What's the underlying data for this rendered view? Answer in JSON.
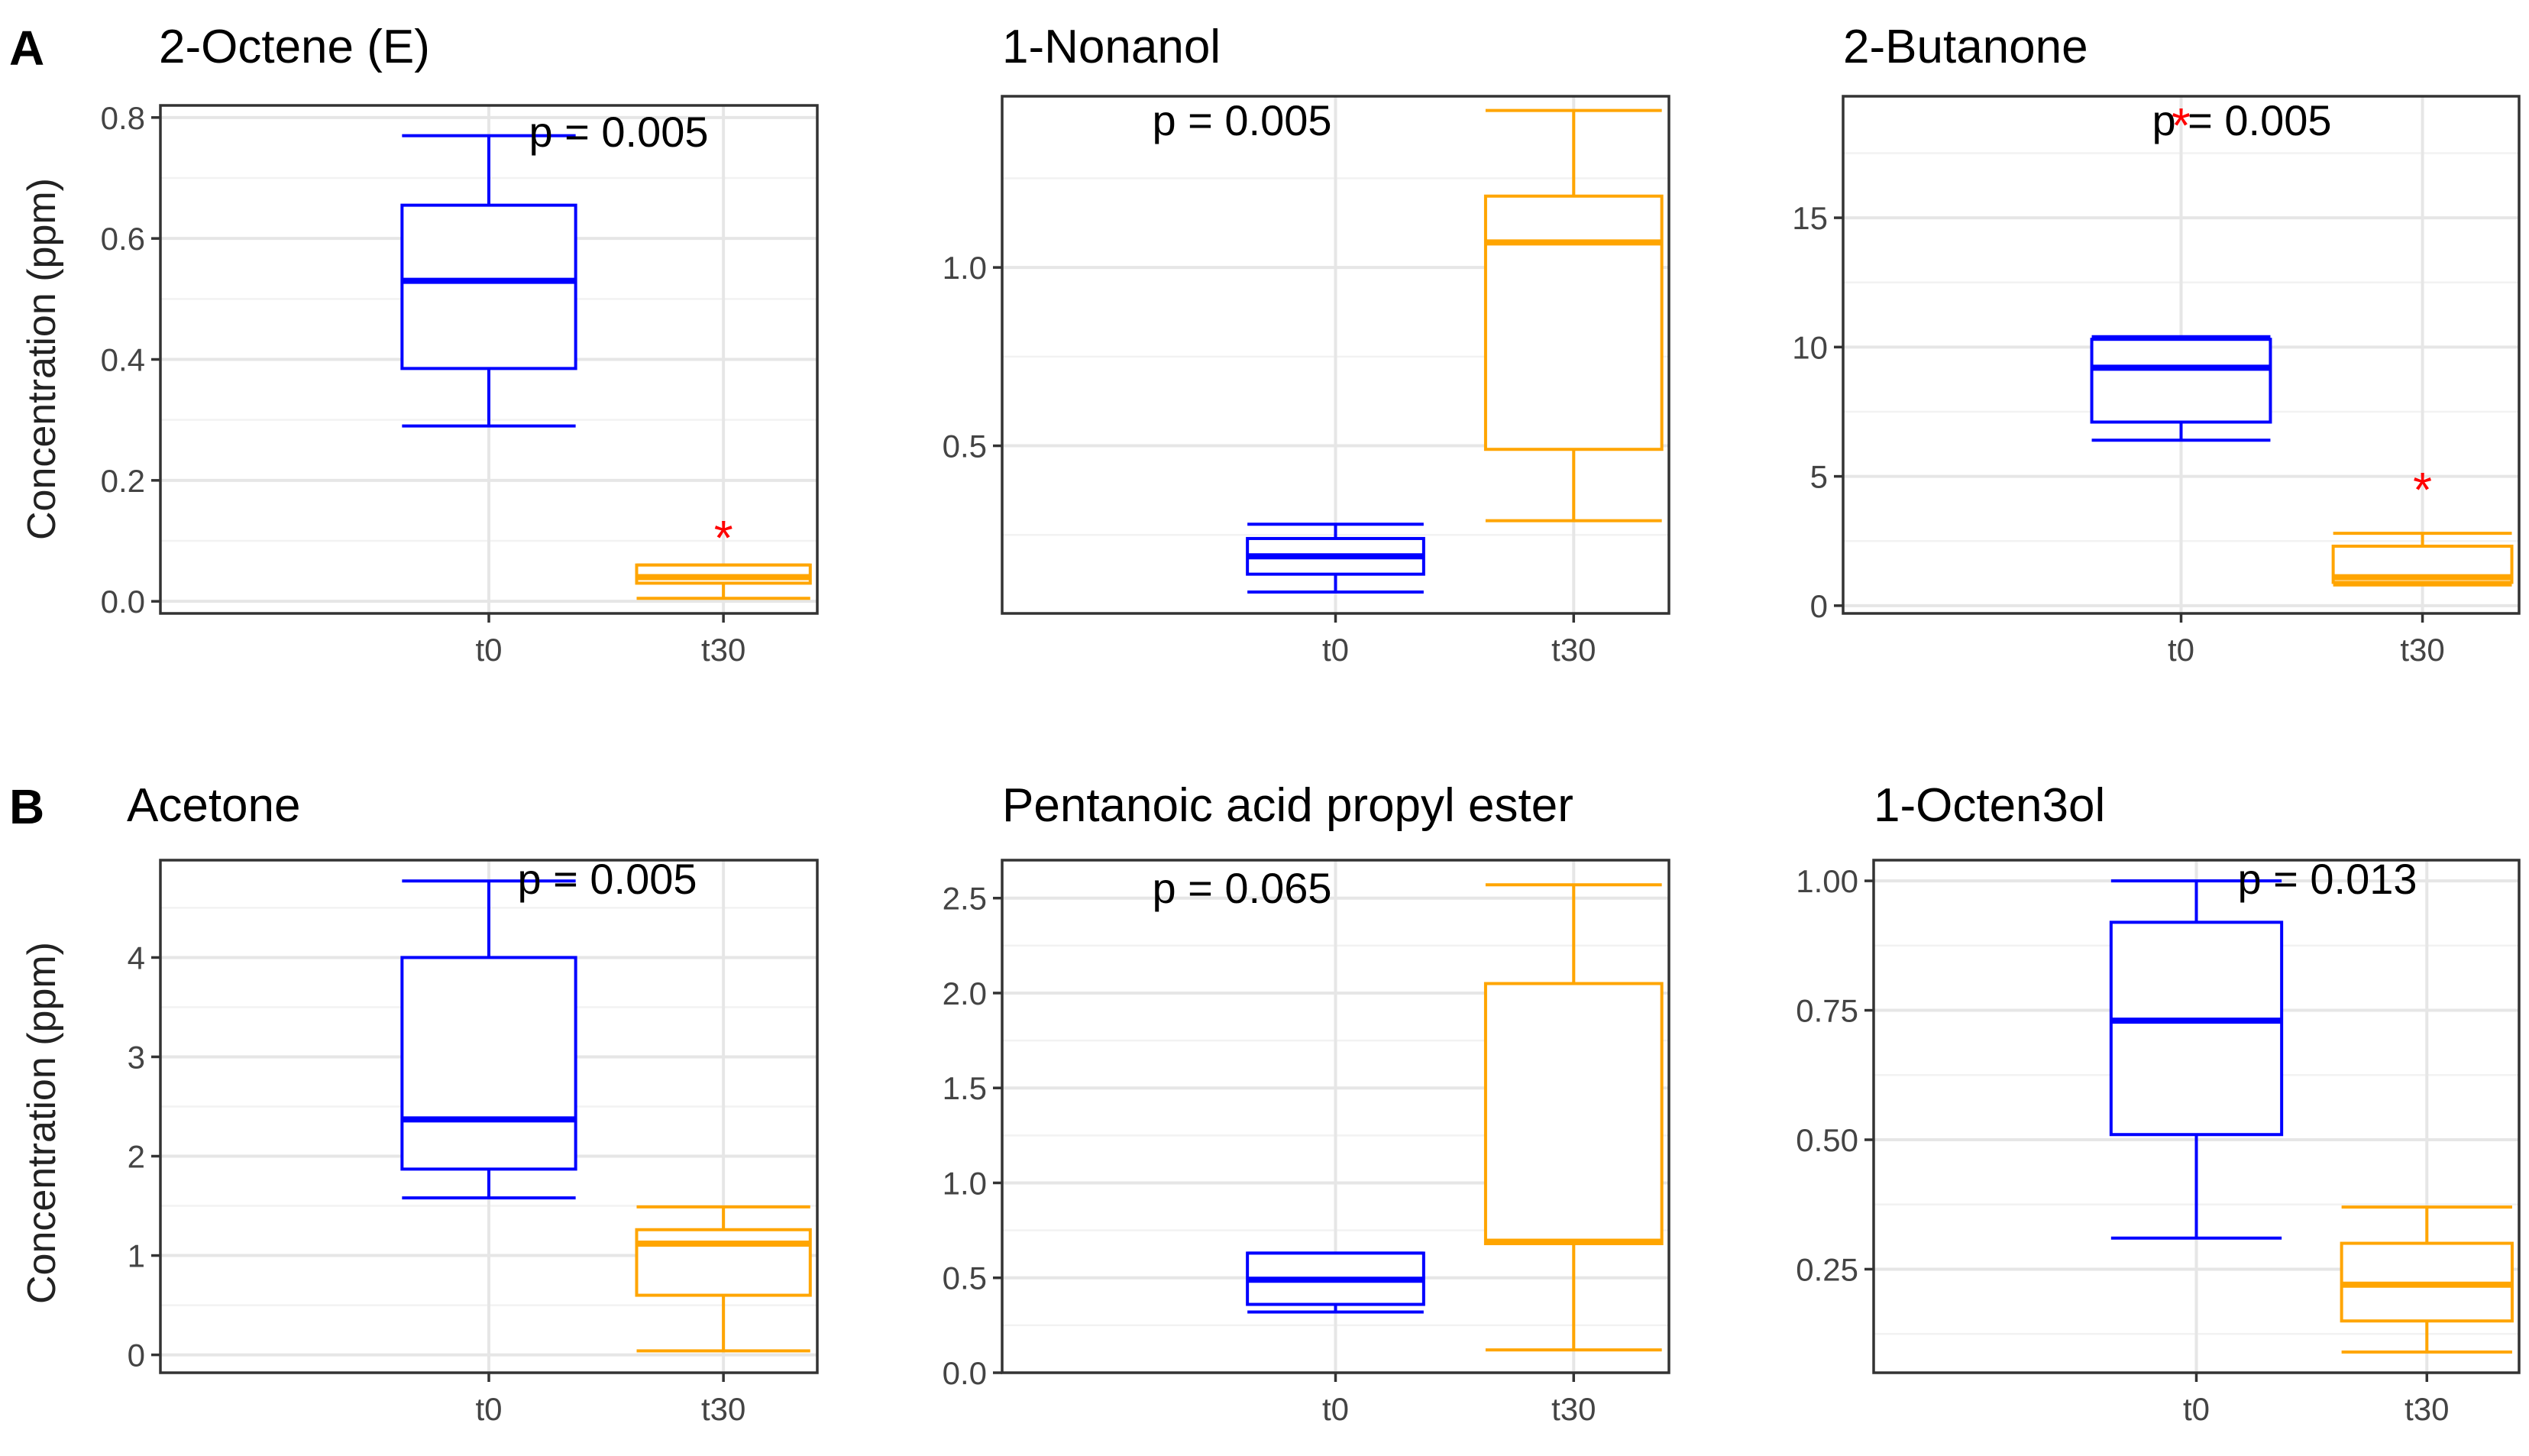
{
  "figure": {
    "panel_labels": {
      "A": "A",
      "B": "B"
    },
    "ylabel": "Concentration (ppm)"
  },
  "chart_data": [
    {
      "type": "box",
      "row": "A",
      "title": "2-Octene (E)",
      "p_value": "p = 0.005",
      "ylim": [
        -0.02,
        0.82
      ],
      "y_major_ticks": [
        0.0,
        0.2,
        0.4,
        0.6,
        0.8
      ],
      "y_minor_ticks": [
        0.1,
        0.3,
        0.5,
        0.7
      ],
      "y_tick_labels": [
        "0.0",
        "0.2",
        "0.4",
        "0.6",
        "0.8"
      ],
      "categories": [
        "t0",
        "t30"
      ],
      "boxes": [
        {
          "group": "t0",
          "color": "#0000ff",
          "whisker_low": 0.29,
          "q1": 0.385,
          "median": 0.53,
          "q3": 0.655,
          "whisker_high": 0.77,
          "outliers": []
        },
        {
          "group": "t30",
          "color": "#ffa500",
          "whisker_low": 0.005,
          "q1": 0.03,
          "median": 0.04,
          "q3": 0.06,
          "whisker_high": 0.06,
          "outliers": [
            0.11
          ]
        }
      ]
    },
    {
      "type": "box",
      "row": "A",
      "title": "1-Nonanol",
      "p_value": "p = 0.005",
      "ylim": [
        0.03,
        1.48
      ],
      "y_major_ticks": [
        0.5,
        1.0
      ],
      "y_minor_ticks": [
        0.25,
        0.75,
        1.25
      ],
      "y_tick_labels": [
        "0.5",
        "1.0"
      ],
      "categories": [
        "t0",
        "t30"
      ],
      "boxes": [
        {
          "group": "t0",
          "color": "#0000ff",
          "whisker_low": 0.09,
          "q1": 0.14,
          "median": 0.19,
          "q3": 0.24,
          "whisker_high": 0.28,
          "outliers": []
        },
        {
          "group": "t30",
          "color": "#ffa500",
          "whisker_low": 0.29,
          "q1": 0.49,
          "median": 1.07,
          "q3": 1.2,
          "whisker_high": 1.44,
          "outliers": []
        }
      ]
    },
    {
      "type": "box",
      "row": "A",
      "title": "2-Butanone",
      "p_value": "p = 0.005",
      "ylim": [
        -0.3,
        19.7
      ],
      "y_major_ticks": [
        0,
        5,
        10,
        15
      ],
      "y_minor_ticks": [
        2.5,
        7.5,
        12.5,
        17.5
      ],
      "y_tick_labels": [
        "0",
        "5",
        "10",
        "15"
      ],
      "categories": [
        "t0",
        "t30"
      ],
      "boxes": [
        {
          "group": "t0",
          "color": "#0000ff",
          "whisker_low": 6.4,
          "q1": 7.1,
          "median": 9.2,
          "q3": 10.3,
          "whisker_high": 10.4,
          "outliers": [
            18.7
          ]
        },
        {
          "group": "t30",
          "color": "#ffa500",
          "whisker_low": 0.8,
          "q1": 0.9,
          "median": 1.1,
          "q3": 2.3,
          "whisker_high": 2.8,
          "outliers": [
            4.6
          ]
        }
      ]
    },
    {
      "type": "box",
      "row": "B",
      "title": "Acetone",
      "p_value": "p = 0.005",
      "ylim": [
        -0.18,
        4.98
      ],
      "y_major_ticks": [
        0,
        1,
        2,
        3,
        4
      ],
      "y_minor_ticks": [
        0.5,
        1.5,
        2.5,
        3.5,
        4.5
      ],
      "y_tick_labels": [
        "0",
        "1",
        "2",
        "3",
        "4"
      ],
      "categories": [
        "t0",
        "t30"
      ],
      "boxes": [
        {
          "group": "t0",
          "color": "#0000ff",
          "whisker_low": 1.58,
          "q1": 1.87,
          "median": 2.37,
          "q3": 4.0,
          "whisker_high": 4.77,
          "outliers": []
        },
        {
          "group": "t30",
          "color": "#ffa500",
          "whisker_low": 0.04,
          "q1": 0.6,
          "median": 1.12,
          "q3": 1.26,
          "whisker_high": 1.49,
          "outliers": []
        }
      ]
    },
    {
      "type": "box",
      "row": "B",
      "title": "Pentanoic acid propyl ester",
      "p_value": "p = 0.065",
      "ylim": [
        0.0,
        2.7
      ],
      "y_major_ticks": [
        0.0,
        0.5,
        1.0,
        1.5,
        2.0,
        2.5
      ],
      "y_minor_ticks": [
        0.25,
        0.75,
        1.25,
        1.75,
        2.25
      ],
      "y_tick_labels": [
        "0.0",
        "0.5",
        "1.0",
        "1.5",
        "2.0",
        "2.5"
      ],
      "categories": [
        "t0",
        "t30"
      ],
      "boxes": [
        {
          "group": "t0",
          "color": "#0000ff",
          "whisker_low": 0.32,
          "q1": 0.36,
          "median": 0.49,
          "q3": 0.63,
          "whisker_high": 0.63,
          "outliers": []
        },
        {
          "group": "t30",
          "color": "#ffa500",
          "whisker_low": 0.12,
          "q1": 0.68,
          "median": 0.69,
          "q3": 2.05,
          "whisker_high": 2.57,
          "outliers": []
        }
      ]
    },
    {
      "type": "box",
      "row": "B",
      "title": "1-Octen3ol",
      "p_value": "p = 0.013",
      "ylim": [
        0.05,
        1.04
      ],
      "y_major_ticks": [
        0.25,
        0.5,
        0.75,
        1.0
      ],
      "y_minor_ticks": [
        0.125,
        0.375,
        0.625,
        0.875
      ],
      "y_tick_labels": [
        "0.25",
        "0.50",
        "0.75",
        "1.00"
      ],
      "categories": [
        "t0",
        "t30"
      ],
      "boxes": [
        {
          "group": "t0",
          "color": "#0000ff",
          "whisker_low": 0.31,
          "q1": 0.51,
          "median": 0.73,
          "q3": 0.92,
          "whisker_high": 1.0,
          "outliers": []
        },
        {
          "group": "t30",
          "color": "#ffa500",
          "whisker_low": 0.09,
          "q1": 0.15,
          "median": 0.22,
          "q3": 0.3,
          "whisker_high": 0.37,
          "outliers": []
        }
      ]
    }
  ]
}
